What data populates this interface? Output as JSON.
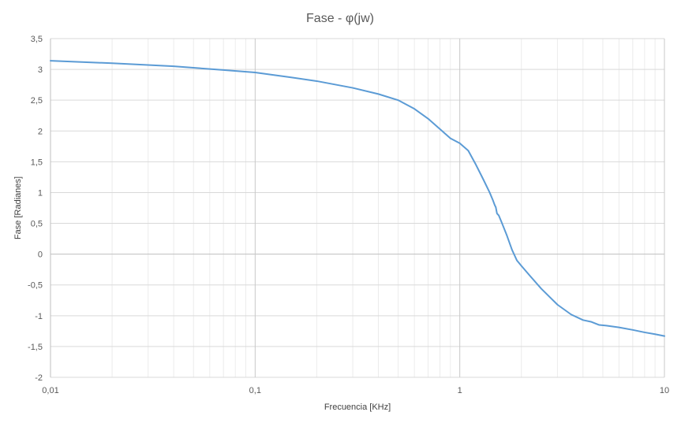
{
  "chart_data": {
    "type": "line",
    "title": "Fase - φ(jw)",
    "xlabel": "Frecuencia [KHz]",
    "ylabel": "Fase [Radianes]",
    "x_scale": "log",
    "xlim": [
      0.01,
      10
    ],
    "ylim": [
      -2,
      3.5
    ],
    "x_ticks": [
      0.01,
      0.1,
      1,
      10
    ],
    "x_tick_labels": [
      "0,01",
      "0,1",
      "1",
      "10"
    ],
    "y_ticks": [
      -2,
      -1.5,
      -1,
      -0.5,
      0,
      0.5,
      1,
      1.5,
      2,
      2.5,
      3,
      3.5
    ],
    "y_tick_labels": [
      "-2",
      "-1,5",
      "-1",
      "-0,5",
      "0",
      "0,5",
      "1",
      "1,5",
      "2",
      "2,5",
      "3",
      "3,5"
    ],
    "grid": true,
    "legend": "none",
    "line_color": "#5b9bd5",
    "series": [
      {
        "x": [
          0.01,
          0.02,
          0.04,
          0.07,
          0.1,
          0.15,
          0.2,
          0.3,
          0.4,
          0.5,
          0.6,
          0.7,
          0.8,
          0.9,
          1.0,
          1.1,
          1.2,
          1.3,
          1.4,
          1.45,
          1.48,
          1.5,
          1.52,
          1.55,
          1.6,
          1.7,
          1.8,
          1.9,
          2.0,
          2.2,
          2.5,
          3.0,
          3.5,
          4.0,
          4.4,
          4.8,
          5.2,
          6.0,
          7.0,
          8.0,
          9.0,
          10.0
        ],
        "y": [
          3.14,
          3.1,
          3.05,
          2.99,
          2.95,
          2.87,
          2.81,
          2.7,
          2.6,
          2.5,
          2.36,
          2.2,
          2.03,
          1.88,
          1.8,
          1.68,
          1.45,
          1.22,
          1.0,
          0.88,
          0.8,
          0.76,
          0.66,
          0.63,
          0.52,
          0.3,
          0.07,
          -0.1,
          -0.19,
          -0.35,
          -0.56,
          -0.82,
          -0.98,
          -1.07,
          -1.1,
          -1.15,
          -1.16,
          -1.19,
          -1.23,
          -1.27,
          -1.3,
          -1.33
        ]
      }
    ]
  }
}
